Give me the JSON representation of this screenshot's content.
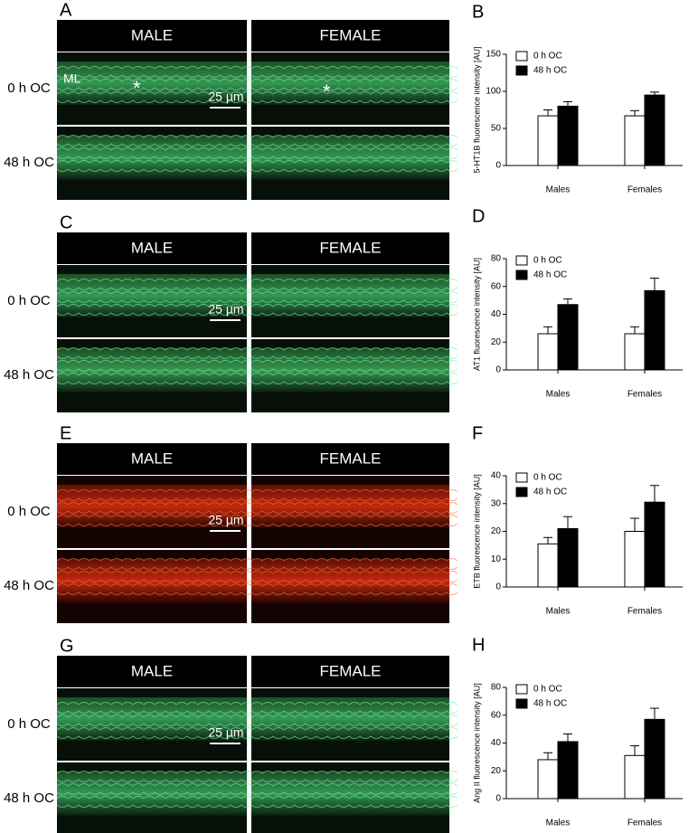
{
  "panels": [
    {
      "letter": "A",
      "columns": [
        "MALE",
        "FEMALE"
      ],
      "rows": [
        "0 h OC",
        "48 h OC"
      ],
      "scale_bar": "25 µm",
      "annotations": [
        "ML",
        "*",
        "*"
      ]
    },
    {
      "letter": "C",
      "columns": [
        "MALE",
        "FEMALE"
      ],
      "rows": [
        "0 h OC",
        "48 h OC"
      ],
      "scale_bar": "25 µm"
    },
    {
      "letter": "E",
      "columns": [
        "MALE",
        "FEMALE"
      ],
      "rows": [
        "0 h OC",
        "48 h OC"
      ],
      "scale_bar": "25 µm"
    },
    {
      "letter": "G",
      "columns": [
        "MALE",
        "FEMALE"
      ],
      "rows": [
        "0 h OC",
        "48 h OC"
      ],
      "scale_bar": "25 µm"
    }
  ],
  "chart_data": [
    {
      "type": "bar",
      "panel": "B",
      "y_label": "5-HT1B fluorescence intensity [AU]",
      "categories": [
        "Males",
        "Females"
      ],
      "series": [
        {
          "name": "0 h OC",
          "color": "#ffffff",
          "values": [
            67,
            67
          ],
          "errors": [
            8,
            7
          ]
        },
        {
          "name": "48 h OC",
          "color": "#000000",
          "values": [
            80,
            95
          ],
          "errors": [
            6,
            4
          ]
        }
      ],
      "ylim": [
        0,
        150
      ],
      "yticks": [
        0,
        50,
        100,
        150
      ],
      "legend": "upper left"
    },
    {
      "type": "bar",
      "panel": "D",
      "y_label": "AT1 fluorescence intensity [AU]",
      "categories": [
        "Males",
        "Females"
      ],
      "series": [
        {
          "name": "0 h OC",
          "color": "#ffffff",
          "values": [
            26,
            26
          ],
          "errors": [
            5,
            5
          ]
        },
        {
          "name": "48 h OC",
          "color": "#000000",
          "values": [
            47,
            57
          ],
          "errors": [
            4,
            9
          ]
        }
      ],
      "ylim": [
        0,
        80
      ],
      "yticks": [
        0,
        20,
        40,
        60,
        80
      ],
      "legend": "upper left"
    },
    {
      "type": "bar",
      "panel": "F",
      "y_label": "ETB fluorescence intensity [AU]",
      "categories": [
        "Males",
        "Females"
      ],
      "series": [
        {
          "name": "0 h OC",
          "color": "#ffffff",
          "values": [
            15.5,
            20
          ],
          "errors": [
            2.3,
            4.7
          ]
        },
        {
          "name": "48 h OC",
          "color": "#000000",
          "values": [
            21,
            30.5
          ],
          "errors": [
            4.3,
            6
          ]
        }
      ],
      "ylim": [
        0,
        40
      ],
      "yticks": [
        0,
        10,
        20,
        30,
        40
      ],
      "legend": "upper left"
    },
    {
      "type": "bar",
      "panel": "H",
      "y_label": "Ang II fluorescence intensity [AU]",
      "categories": [
        "Males",
        "Females"
      ],
      "series": [
        {
          "name": "0 h OC",
          "color": "#ffffff",
          "values": [
            28,
            31
          ],
          "errors": [
            5,
            7
          ]
        },
        {
          "name": "48 h OC",
          "color": "#000000",
          "values": [
            41,
            57
          ],
          "errors": [
            5.5,
            8
          ]
        }
      ],
      "ylim": [
        0,
        80
      ],
      "yticks": [
        0,
        20,
        40,
        60,
        80
      ],
      "legend": "upper left"
    }
  ]
}
